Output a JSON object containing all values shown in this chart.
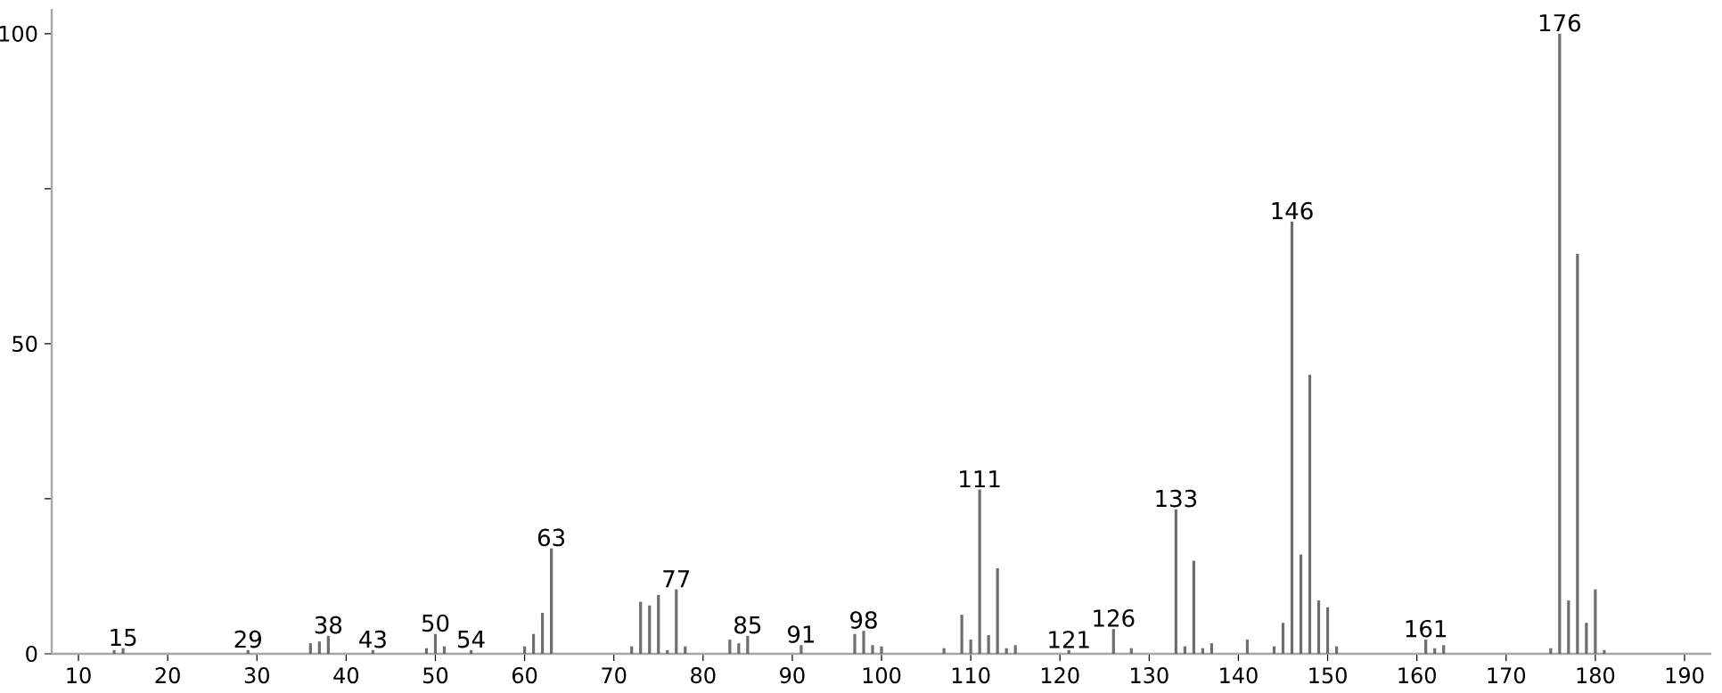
{
  "chart_data": {
    "type": "bar",
    "color": "#6e6e6e",
    "x": [
      14,
      15,
      29,
      36,
      37,
      38,
      43,
      49,
      50,
      51,
      54,
      60,
      61,
      62,
      63,
      72,
      73,
      74,
      75,
      76,
      77,
      78,
      83,
      84,
      85,
      91,
      97,
      98,
      99,
      100,
      107,
      109,
      110,
      111,
      112,
      113,
      114,
      115,
      121,
      126,
      128,
      133,
      134,
      135,
      136,
      137,
      141,
      144,
      145,
      146,
      147,
      148,
      149,
      150,
      151,
      161,
      162,
      163,
      175,
      176,
      177,
      178,
      179,
      180,
      181
    ],
    "values": [
      0.6,
      0.9,
      0.6,
      1.7,
      2,
      2.9,
      0.6,
      0.9,
      3.2,
      1.2,
      0.6,
      1.2,
      3.2,
      6.6,
      17,
      1.2,
      8.4,
      7.8,
      9.5,
      0.6,
      10.4,
      1.2,
      2.3,
      1.7,
      2.9,
      1.4,
      3.2,
      3.7,
      1.4,
      1.2,
      0.9,
      6.3,
      2.3,
      26.5,
      3,
      13.8,
      0.9,
      1.4,
      0.6,
      4,
      0.9,
      23.3,
      1.2,
      15,
      0.9,
      1.7,
      2.3,
      1.2,
      5,
      69.7,
      16,
      45,
      8.6,
      7.5,
      1.2,
      2.3,
      0.9,
      1.4,
      0.9,
      100,
      8.6,
      64.5,
      5,
      10.4,
      0.6
    ],
    "xlim": [
      7,
      193
    ],
    "ylim": [
      0,
      104
    ],
    "xticks": [
      10,
      20,
      30,
      40,
      50,
      60,
      70,
      80,
      90,
      100,
      110,
      120,
      130,
      140,
      150,
      160,
      170,
      180,
      190
    ],
    "yticks": [
      0,
      {
        "value": 25,
        "label": null
      },
      50,
      {
        "value": 75,
        "label": null
      },
      100
    ],
    "annotations": [
      {
        "text": "15",
        "x": 15,
        "y": 0.9
      },
      {
        "text": "29",
        "x": 29,
        "y": 0.6
      },
      {
        "text": "38",
        "x": 38,
        "y": 2.9
      },
      {
        "text": "43",
        "x": 43,
        "y": 0.6
      },
      {
        "text": "50",
        "x": 50,
        "y": 3.2
      },
      {
        "text": "54",
        "x": 54,
        "y": 0.6
      },
      {
        "text": "63",
        "x": 63,
        "y": 17
      },
      {
        "text": "77",
        "x": 77,
        "y": 10.4
      },
      {
        "text": "85",
        "x": 85,
        "y": 2.9
      },
      {
        "text": "91",
        "x": 91,
        "y": 1.4
      },
      {
        "text": "98",
        "x": 98,
        "y": 3.7
      },
      {
        "text": "111",
        "x": 111,
        "y": 26.5
      },
      {
        "text": "121",
        "x": 121,
        "y": 0.6
      },
      {
        "text": "126",
        "x": 126,
        "y": 4
      },
      {
        "text": "133",
        "x": 133,
        "y": 23.3
      },
      {
        "text": "146",
        "x": 146,
        "y": 69.7
      },
      {
        "text": "161",
        "x": 161,
        "y": 2.3
      },
      {
        "text": "176",
        "x": 176,
        "y": 100
      }
    ]
  }
}
